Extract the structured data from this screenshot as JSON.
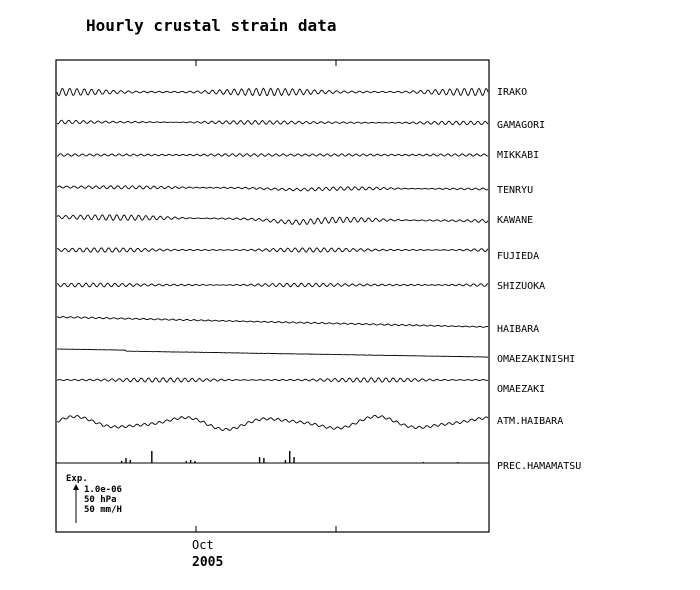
{
  "chart_data": {
    "type": "line",
    "title": "Hourly crustal strain data",
    "x_tick_labels": [
      "Oct"
    ],
    "x_year_label": "2005",
    "series": [
      {
        "name": "IRAKO",
        "pattern": "tidal",
        "amplitude": 2.5,
        "trend": 0,
        "level": 0
      },
      {
        "name": "GAMAGORI",
        "pattern": "tidal",
        "amplitude": 1.5,
        "trend": 1,
        "level": 0
      },
      {
        "name": "MIKKABI",
        "pattern": "tidal",
        "amplitude": 1.5,
        "trend": 0,
        "level": 0
      },
      {
        "name": "TENRYU",
        "pattern": "tidal",
        "amplitude": 1.5,
        "trend": 2,
        "level": 0
      },
      {
        "name": "KAWANE",
        "pattern": "tidal",
        "amplitude": 2,
        "trend": 4,
        "level": 0
      },
      {
        "name": "FUJIEDA",
        "pattern": "tidal",
        "amplitude": 1.5,
        "trend": 0,
        "level": 0
      },
      {
        "name": "SHIZUOKA",
        "pattern": "tidal",
        "amplitude": 1.5,
        "trend": 0,
        "level": 0
      },
      {
        "name": "HAIBARA",
        "pattern": "tidal",
        "amplitude": 0.8,
        "trend": 10,
        "level": 0
      },
      {
        "name": "OMAEZAKINISHI",
        "pattern": "drift",
        "amplitude": 0.3,
        "trend": 7,
        "level": 0
      },
      {
        "name": "OMAEZAKI",
        "pattern": "tidal",
        "amplitude": 1.5,
        "trend": 0,
        "level": 0
      },
      {
        "name": "ATM.HAIBARA",
        "pattern": "pressure",
        "amplitude": 6,
        "trend": 0,
        "level": 0
      },
      {
        "name": "PREC.HAMAMATSU",
        "pattern": "precip",
        "amplitude": 10,
        "trend": 0,
        "level": 0
      }
    ],
    "precip_events_fraction": [
      0.15,
      0.16,
      0.17,
      0.22,
      0.3,
      0.31,
      0.32,
      0.47,
      0.48,
      0.53,
      0.54,
      0.55,
      0.85,
      0.93
    ],
    "precip_heights_mm": [
      2,
      5,
      3,
      12,
      2,
      3,
      2,
      6,
      5,
      3,
      12,
      6,
      1,
      1
    ],
    "scale_legend": {
      "label": "Exp.",
      "lines": [
        "1.0e-06",
        "50 hPa",
        "50 mm/H"
      ]
    },
    "grid": false,
    "legend_placement": "right"
  }
}
